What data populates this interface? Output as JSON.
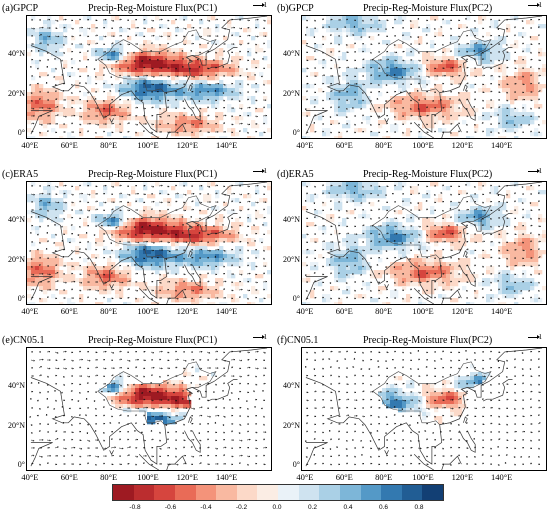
{
  "panels": [
    {
      "tag": "(a)GPCP",
      "name": "Precip-Reg-Moisture Flux(PC1)",
      "ref": "1",
      "pattern": 1,
      "mask": "none"
    },
    {
      "tag": "(b)GPCP",
      "name": "Precip-Reg-Moisture Flux(PC2)",
      "ref": "1",
      "pattern": 2,
      "mask": "none"
    },
    {
      "tag": "(c)ERA5",
      "name": "Precip-Reg-Moisture Flux(PC1)",
      "ref": "1",
      "pattern": 1,
      "mask": "none"
    },
    {
      "tag": "(d)ERA5",
      "name": "Precip-Reg-Moisture Flux(PC2)",
      "ref": "1",
      "pattern": 2,
      "mask": "none"
    },
    {
      "tag": "(e)CN05.1",
      "name": "Precip-Reg-Moisture Flux(PC1)",
      "ref": "1",
      "pattern": 1,
      "mask": "china"
    },
    {
      "tag": "(f)CN05.1",
      "name": "Precip-Reg-Moisture Flux(PC2)",
      "ref": "1",
      "pattern": 2,
      "mask": "china"
    }
  ],
  "lat_labels": [
    "40°N",
    "20°N",
    "0°"
  ],
  "lon_labels": [
    "40°E",
    "60°E",
    "80°E",
    "100°E",
    "120°E",
    "140°E"
  ],
  "colorbar": {
    "colors": [
      "#9e1a22",
      "#bb2d2f",
      "#d6453e",
      "#e96b57",
      "#f4937a",
      "#f9b9a1",
      "#fcd9c8",
      "#fbede4",
      "#eaf2f8",
      "#cfe3f0",
      "#aad0e6",
      "#7db6d8",
      "#5499c7",
      "#3379b0",
      "#215d94",
      "#123f74"
    ],
    "ticks": [
      "-0.8",
      "-0.6",
      "-0.4",
      "-0.2",
      "0.0",
      "0.2",
      "0.4",
      "0.6",
      "0.8"
    ]
  }
}
